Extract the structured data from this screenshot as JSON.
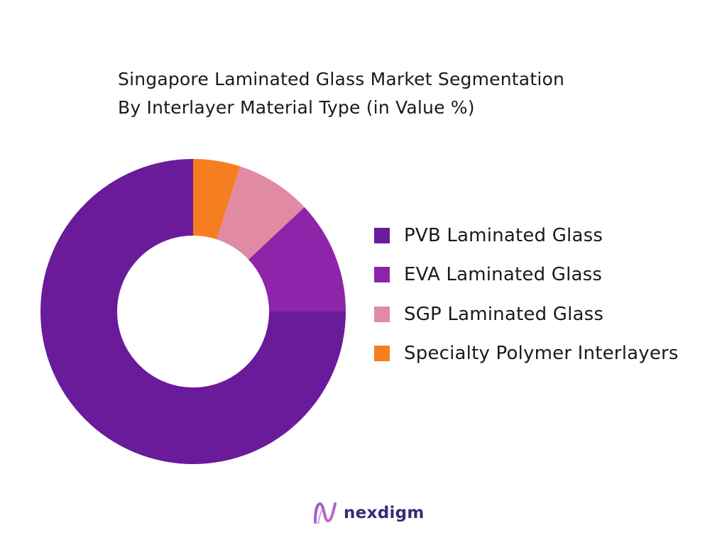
{
  "chart_data": {
    "type": "pie",
    "variant": "donut",
    "title_lines": [
      "Singapore Laminated Glass Market Segmentation",
      "By  Interlayer Material Type  (in Value %)"
    ],
    "categories": [
      "PVB Laminated Glass",
      "EVA Laminated Glass",
      "SGP Laminated Glass",
      "Specialty Polymer Interlayers"
    ],
    "values": [
      75,
      12,
      8,
      5
    ],
    "unit": "%",
    "colors": [
      "#6a1b9a",
      "#8e24aa",
      "#e08aa3",
      "#f57f20"
    ],
    "legend_position": "right"
  },
  "brand": {
    "logo_text": "nexdigm",
    "logo_icon": "nexdigm-logo-icon"
  }
}
